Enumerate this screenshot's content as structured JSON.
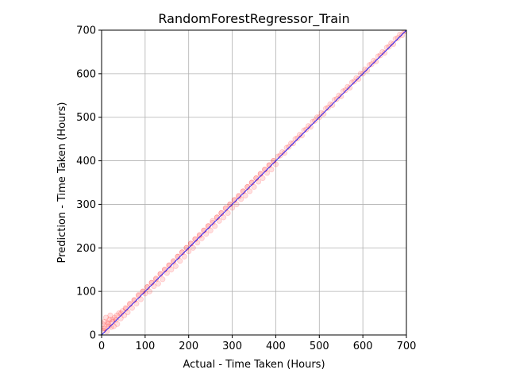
{
  "chart_data": {
    "type": "scatter",
    "title": "RandomForestRegressor_Train",
    "xlabel": "Actual - Time Taken (Hours)",
    "ylabel": "Prediction - Time Taken (Hours)",
    "xlim": [
      0,
      700
    ],
    "ylim": [
      0,
      700
    ],
    "xticks": [
      "0",
      "100",
      "200",
      "300",
      "400",
      "500",
      "600",
      "700"
    ],
    "yticks": [
      "0",
      "100",
      "200",
      "300",
      "400",
      "500",
      "600",
      "700"
    ],
    "grid": true,
    "aspect": "equal",
    "series": [
      {
        "kind": "points",
        "color": "#ff0000",
        "alpha": 0.12,
        "x": [
          2,
          4,
          6,
          8,
          10,
          12,
          14,
          16,
          18,
          20,
          22,
          25,
          28,
          30,
          33,
          36,
          40,
          44,
          48,
          52,
          56,
          60,
          65,
          70,
          75,
          80,
          85,
          90,
          95,
          100,
          105,
          110,
          115,
          120,
          125,
          130,
          135,
          140,
          145,
          150,
          155,
          160,
          165,
          170,
          175,
          180,
          185,
          190,
          195,
          200,
          205,
          210,
          215,
          220,
          225,
          230,
          235,
          240,
          245,
          250,
          255,
          260,
          265,
          270,
          275,
          280,
          285,
          290,
          295,
          300,
          305,
          310,
          315,
          320,
          325,
          330,
          335,
          340,
          345,
          350,
          355,
          360,
          365,
          370,
          375,
          380,
          385,
          390,
          395,
          400,
          410,
          420,
          430,
          440,
          450,
          460,
          470,
          480,
          490,
          500,
          510,
          520,
          530,
          540,
          550,
          560,
          570,
          580,
          590,
          600,
          610,
          620,
          630,
          640,
          650,
          660,
          670,
          680,
          690,
          698,
          5,
          15,
          25,
          35,
          45,
          55,
          65,
          75,
          85,
          95,
          105,
          115,
          125,
          135,
          145,
          155,
          165,
          175,
          185,
          195,
          205,
          215,
          225,
          235,
          245,
          255,
          265,
          275,
          285,
          295,
          305,
          315,
          325,
          335,
          345,
          355,
          365,
          375,
          385,
          395,
          405,
          415,
          425,
          435,
          445,
          455,
          465,
          475,
          485,
          495,
          505,
          515,
          525,
          535,
          545,
          555,
          565,
          575,
          585,
          595,
          605,
          615,
          625,
          635,
          645,
          655,
          665,
          675,
          685,
          695
        ],
        "y": [
          25,
          10,
          30,
          15,
          40,
          8,
          28,
          20,
          35,
          45,
          18,
          30,
          20,
          40,
          35,
          25,
          50,
          38,
          55,
          45,
          60,
          52,
          70,
          62,
          80,
          72,
          90,
          82,
          100,
          95,
          110,
          100,
          120,
          112,
          130,
          118,
          140,
          128,
          150,
          142,
          160,
          150,
          170,
          158,
          180,
          170,
          190,
          180,
          200,
          192,
          210,
          200,
          220,
          212,
          230,
          222,
          240,
          232,
          250,
          240,
          262,
          250,
          270,
          262,
          280,
          270,
          292,
          280,
          300,
          292,
          310,
          300,
          318,
          312,
          330,
          320,
          340,
          330,
          350,
          340,
          360,
          352,
          370,
          360,
          380,
          372,
          390,
          380,
          400,
          392,
          412,
          418,
          432,
          440,
          452,
          458,
          472,
          478,
          492,
          500,
          508,
          522,
          528,
          542,
          548,
          562,
          568,
          582,
          588,
          600,
          608,
          622,
          628,
          642,
          648,
          662,
          668,
          682,
          688,
          698,
          15,
          25,
          35,
          45,
          50,
          62,
          72,
          80,
          92,
          100,
          110,
          120,
          128,
          140,
          150,
          160,
          168,
          180,
          190,
          200,
          210,
          220,
          228,
          240,
          250,
          258,
          270,
          280,
          290,
          300,
          310,
          320,
          330,
          340,
          350,
          360,
          370,
          380,
          390,
          400,
          410,
          420,
          430,
          440,
          450,
          460,
          470,
          480,
          490,
          500,
          510,
          520,
          530,
          540,
          550,
          560,
          570,
          580,
          590,
          600,
          610,
          620,
          630,
          640,
          650,
          660,
          670,
          680,
          690,
          698
        ]
      },
      {
        "kind": "line",
        "color": "#0000ff",
        "x": [
          0,
          700
        ],
        "y": [
          0,
          700
        ]
      }
    ]
  }
}
